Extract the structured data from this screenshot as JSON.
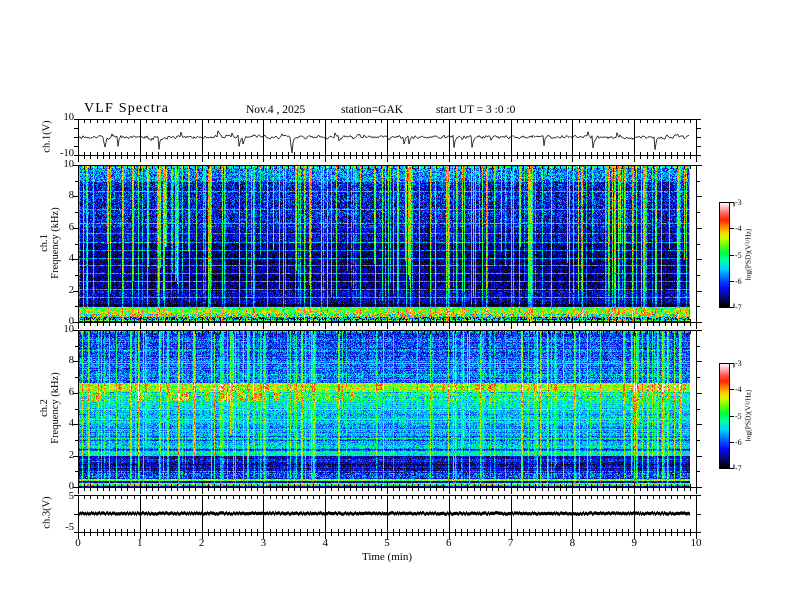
{
  "title": "VLF Spectra",
  "header": {
    "date": "Nov.4 , 2025",
    "station": "station=GAK",
    "start_ut": "start UT =  3 :0 :0"
  },
  "xaxis": {
    "label": "Time (min)",
    "range": [
      0,
      10
    ],
    "ticks": [
      "0",
      "1",
      "2",
      "3",
      "4",
      "5",
      "6",
      "7",
      "8",
      "9",
      "10"
    ]
  },
  "panels": {
    "ch1_wave": {
      "ylabel": "ch.1(V)",
      "ymax": "10",
      "ymin": "-10"
    },
    "ch1_spec": {
      "name_label": "ch.1",
      "freq_label": "Frequency (kHz)",
      "yticks": [
        "0",
        "2",
        "4",
        "6",
        "8",
        "10"
      ]
    },
    "ch2_spec": {
      "name_label": "ch.2",
      "freq_label": "Frequency (kHz)",
      "yticks": [
        "0",
        "2",
        "4",
        "6",
        "8",
        "10"
      ]
    },
    "ch3_wave": {
      "ylabel": "ch.3(V)",
      "ymax": "5",
      "ymin": "-5"
    }
  },
  "colorbar": {
    "label": "log(PSD)(V²/Hz)",
    "ticks": [
      "-3",
      "-4",
      "-5",
      "-6",
      "-7"
    ],
    "top_color": "#ffffff",
    "bottom_color": "#000000"
  },
  "colors": {
    "frame": "#000000",
    "trace": "#000000",
    "background": "#ffffff"
  },
  "colormap": {
    "stops": [
      [
        0.0,
        0,
        0,
        0
      ],
      [
        0.07,
        8,
        8,
        90
      ],
      [
        0.18,
        10,
        10,
        255
      ],
      [
        0.28,
        0,
        110,
        255
      ],
      [
        0.36,
        0,
        210,
        255
      ],
      [
        0.44,
        0,
        255,
        170
      ],
      [
        0.52,
        0,
        255,
        60
      ],
      [
        0.6,
        120,
        255,
        0
      ],
      [
        0.66,
        210,
        255,
        0
      ],
      [
        0.71,
        255,
        210,
        0
      ],
      [
        0.77,
        255,
        130,
        0
      ],
      [
        0.83,
        255,
        40,
        0
      ],
      [
        0.89,
        255,
        90,
        90
      ],
      [
        0.95,
        255,
        185,
        185
      ],
      [
        1.0,
        255,
        255,
        255
      ]
    ]
  },
  "chart_data": [
    {
      "type": "line",
      "title": "ch.1 voltage waveform",
      "xlabel": "Time (min)",
      "x_range": [
        0,
        10
      ],
      "ylabel": "ch.1(V)",
      "y_range": [
        -10,
        10
      ],
      "summary": "broadband noise of roughly ±2 V about 0 V for the full 10 min, with ~25 impulsive negative spikes reaching -3 to -8 V",
      "gen": {
        "seed": 11,
        "sigma": 1.0,
        "spike_prob": 0.035,
        "spike_depth": [
          2,
          7
        ],
        "up_prob": 0.012,
        "up_height": [
          1.5,
          3.5
        ]
      }
    },
    {
      "type": "heatmap",
      "title": "ch.1 VLF spectrogram",
      "xlabel": "Time (min)",
      "x_range": [
        0,
        10
      ],
      "ylabel": "Frequency (kHz)",
      "y_range": [
        0,
        10
      ],
      "z_label": "log(PSD)(V²/Hz)",
      "z_range": [
        -7,
        -3
      ],
      "summary": "dark blue/black background (-6.5 to -7) with dense bright green/cyan vertical sferic streaks strongest above 5 kHz, faint cyan horizontal harmonic lines every ~0.5 kHz, a black notch near 1 kHz, and a bright green/yellow band with red specks below 0.9 kHz",
      "seed": 7,
      "row_noise": 0.06,
      "col_noise": 0.08,
      "ripple": 0.0,
      "streaks": {
        "count": 175,
        "min": 0.18,
        "var": 0.35,
        "full_prob": 0.55,
        "fade_below_khz": 2.0
      },
      "bands": [
        [
          9.82,
          10,
          0.45,
          0.2
        ],
        [
          9.0,
          9.82,
          0.3,
          0.16
        ],
        [
          6.0,
          9.0,
          0.17,
          0.16
        ],
        [
          5.0,
          6.0,
          0.12,
          0.13
        ],
        [
          2.0,
          5.0,
          0.07,
          0.11
        ],
        [
          1.15,
          2.0,
          0.13,
          0.12
        ],
        [
          0.95,
          1.15,
          0.05,
          0.05
        ],
        [
          0.82,
          0.95,
          0.55,
          0.1
        ],
        [
          0.5,
          0.82,
          0.6,
          0.15
        ],
        [
          0.33,
          0.5,
          0.55,
          0.3
        ],
        [
          0.12,
          0.33,
          0.25,
          0.35
        ],
        [
          0.04,
          0.12,
          0.5,
          0.2
        ],
        [
          0.0,
          0.04,
          0.1,
          0.1
        ]
      ],
      "hlines": [
        [
          1.6,
          0.22
        ],
        [
          2.1,
          0.25
        ],
        [
          2.6,
          0.22
        ],
        [
          3.1,
          0.25
        ],
        [
          3.6,
          0.22
        ],
        [
          4.1,
          0.25
        ],
        [
          4.6,
          0.2
        ],
        [
          5.1,
          0.22
        ],
        [
          5.65,
          0.18
        ],
        [
          6.3,
          0.18
        ],
        [
          7.2,
          0.18
        ],
        [
          8.35,
          0.18
        ],
        [
          9.0,
          0.15
        ]
      ],
      "blobs": []
    },
    {
      "type": "heatmap",
      "title": "ch.2 VLF spectrogram",
      "xlabel": "Time (min)",
      "x_range": [
        0,
        10
      ],
      "ylabel": "Frequency (kHz)",
      "y_range": [
        0,
        10
      ],
      "z_label": "log(PSD)(V²/Hz)",
      "z_range": [
        -7,
        -3
      ],
      "summary": "brighter cyan/blue background (-5.5 to -6) with horizontal striping, a persistent yellow-orange band near 6.2 kHz (~-3.5), green lines near 5 and 2-4 kHz, a dark blue band 1-2 kHz, a continuous red line near 0.1 kHz, and cyan/green vertical streaks throughout",
      "seed": 13,
      "row_noise": 0.1,
      "col_noise": 0.07,
      "ripple": 0.02,
      "streaks": {
        "count": 140,
        "min": 0.1,
        "var": 0.25,
        "full_prob": 0.8,
        "fade_below_khz": 0.5
      },
      "bands": [
        [
          9.8,
          10,
          0.35,
          0.15
        ],
        [
          8.3,
          9.8,
          0.25,
          0.13
        ],
        [
          6.6,
          8.3,
          0.3,
          0.13
        ],
        [
          6.05,
          6.6,
          0.63,
          0.1
        ],
        [
          5.5,
          6.05,
          0.45,
          0.17
        ],
        [
          4.8,
          5.5,
          0.4,
          0.12
        ],
        [
          3.9,
          4.8,
          0.36,
          0.11
        ],
        [
          2.3,
          3.9,
          0.32,
          0.11
        ],
        [
          1.95,
          2.3,
          0.43,
          0.1
        ],
        [
          1.0,
          1.95,
          0.15,
          0.11
        ],
        [
          0.5,
          1.0,
          0.22,
          0.15
        ],
        [
          0.38,
          0.5,
          0.55,
          0.12
        ],
        [
          0.25,
          0.38,
          0.12,
          0.1
        ],
        [
          0.12,
          0.25,
          0.55,
          0.15
        ],
        [
          0.05,
          0.12,
          0.78,
          0.08
        ],
        [
          0.0,
          0.05,
          0.08,
          0.05
        ]
      ],
      "hlines": [
        [
          2.6,
          0.15
        ],
        [
          3.15,
          0.15
        ],
        [
          3.7,
          0.15
        ],
        [
          4.3,
          0.12
        ],
        [
          5.0,
          0.15
        ],
        [
          6.28,
          0.1
        ],
        [
          7.2,
          0.1
        ],
        [
          7.9,
          0.1
        ],
        [
          8.7,
          0.1
        ],
        [
          2.45,
          -0.12
        ],
        [
          3.0,
          -0.1
        ],
        [
          1.5,
          -0.05
        ]
      ],
      "blobs": [
        {
          "count": 14,
          "x_range": [
            0,
            320
          ],
          "f_range": [
            5.5,
            6.05
          ],
          "add": 0.22,
          "w": [
            3,
            12
          ]
        },
        {
          "count": 10,
          "x_range": [
            0,
            612
          ],
          "f_range": [
            6.05,
            6.55
          ],
          "add": 0.12,
          "w": [
            3,
            8
          ]
        }
      ]
    },
    {
      "type": "line",
      "title": "ch.3 voltage waveform",
      "xlabel": "Time (min)",
      "x_range": [
        0,
        10
      ],
      "ylabel": "ch.3(V)",
      "y_range": [
        -5,
        5
      ],
      "summary": "dense flat black trace at ~0 V for the full record",
      "gen": {
        "seed": 5
      }
    }
  ]
}
